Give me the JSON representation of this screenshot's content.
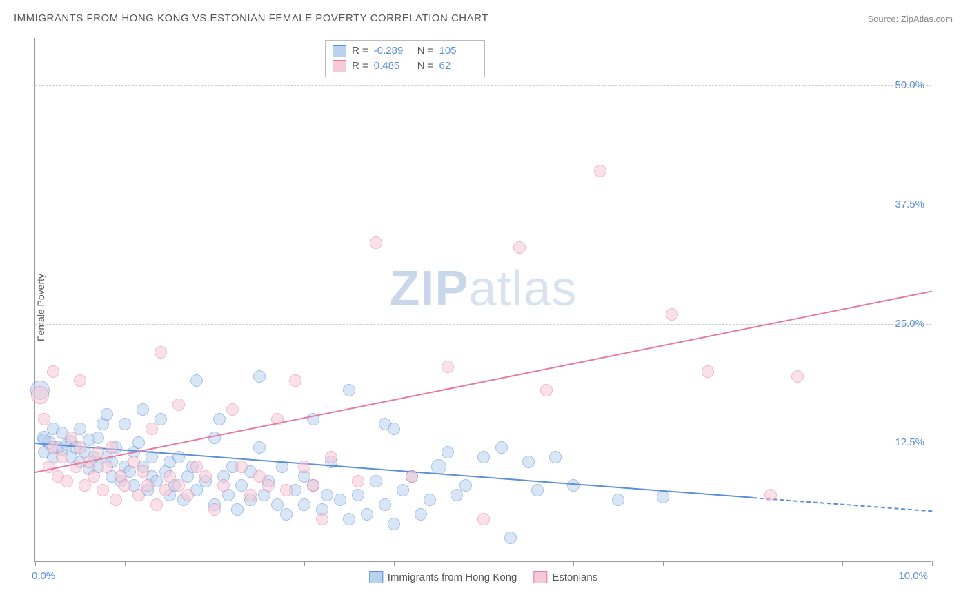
{
  "title": "IMMIGRANTS FROM HONG KONG VS ESTONIAN FEMALE POVERTY CORRELATION CHART",
  "source_label": "Source: ZipAtlas.com",
  "ylabel": "Female Poverty",
  "watermark_1": "ZIP",
  "watermark_2": "atlas",
  "chart": {
    "type": "scatter",
    "xlim": [
      0,
      10
    ],
    "ylim": [
      0,
      55
    ],
    "x_tick_step": 1,
    "x_tick_labels": {
      "0": "0.0%",
      "10": "10.0%"
    },
    "y_ticks": [
      12.5,
      25.0,
      37.5,
      50.0
    ],
    "y_tick_labels": [
      "12.5%",
      "25.0%",
      "37.5%",
      "50.0%"
    ],
    "grid_color": "#cccccc",
    "axis_color": "#999999",
    "background_color": "#ffffff",
    "label_color": "#5b8fd6"
  },
  "series": [
    {
      "name": "Immigrants from Hong Kong",
      "fill": "#b9d2f0",
      "stroke": "#5b8fd6",
      "fill_opacity": 0.55,
      "marker_radius": 9,
      "R": "-0.289",
      "N": "105",
      "trend": {
        "x1": 0,
        "y1": 12.5,
        "x2": 8.0,
        "y2": 6.8,
        "dash_to_x": 10.0,
        "dash_to_y": 5.4
      },
      "points": [
        [
          0.05,
          18.0,
          14
        ],
        [
          0.1,
          13.0,
          10
        ],
        [
          0.15,
          12.5,
          10
        ],
        [
          0.1,
          11.5,
          9
        ],
        [
          0.1,
          12.8,
          9
        ],
        [
          0.2,
          14.0,
          9
        ],
        [
          0.2,
          11.0,
          9
        ],
        [
          0.25,
          12.0,
          9
        ],
        [
          0.3,
          13.5,
          9
        ],
        [
          0.3,
          11.8,
          9
        ],
        [
          0.35,
          12.3,
          9
        ],
        [
          0.4,
          12.7,
          9
        ],
        [
          0.4,
          11.0,
          9
        ],
        [
          0.45,
          12.0,
          9
        ],
        [
          0.5,
          10.5,
          9
        ],
        [
          0.5,
          14.0,
          9
        ],
        [
          0.55,
          11.5,
          9
        ],
        [
          0.6,
          12.8,
          9
        ],
        [
          0.6,
          9.8,
          9
        ],
        [
          0.65,
          11.0,
          9
        ],
        [
          0.7,
          13.0,
          9
        ],
        [
          0.7,
          10.0,
          9
        ],
        [
          0.75,
          14.5,
          9
        ],
        [
          0.8,
          15.5,
          9
        ],
        [
          0.8,
          11.0,
          9
        ],
        [
          0.85,
          9.0,
          9
        ],
        [
          0.85,
          10.5,
          9
        ],
        [
          0.9,
          12.0,
          9
        ],
        [
          0.95,
          8.5,
          9
        ],
        [
          1.0,
          10.0,
          9
        ],
        [
          1.0,
          14.5,
          9
        ],
        [
          1.05,
          9.5,
          9
        ],
        [
          1.1,
          11.5,
          9
        ],
        [
          1.1,
          8.0,
          9
        ],
        [
          1.15,
          12.5,
          9
        ],
        [
          1.2,
          16.0,
          9
        ],
        [
          1.2,
          10.0,
          9
        ],
        [
          1.25,
          7.5,
          9
        ],
        [
          1.3,
          9.0,
          9
        ],
        [
          1.3,
          11.0,
          9
        ],
        [
          1.35,
          8.5,
          9
        ],
        [
          1.4,
          15.0,
          9
        ],
        [
          1.45,
          9.5,
          9
        ],
        [
          1.5,
          10.5,
          9
        ],
        [
          1.5,
          7.0,
          9
        ],
        [
          1.55,
          8.0,
          9
        ],
        [
          1.6,
          11.0,
          9
        ],
        [
          1.65,
          6.5,
          9
        ],
        [
          1.7,
          9.0,
          9
        ],
        [
          1.75,
          10.0,
          9
        ],
        [
          1.8,
          19.0,
          9
        ],
        [
          1.8,
          7.5,
          9
        ],
        [
          1.9,
          8.5,
          9
        ],
        [
          2.0,
          13.0,
          9
        ],
        [
          2.0,
          6.0,
          9
        ],
        [
          2.05,
          15.0,
          9
        ],
        [
          2.1,
          9.0,
          9
        ],
        [
          2.15,
          7.0,
          9
        ],
        [
          2.2,
          10.0,
          9
        ],
        [
          2.25,
          5.5,
          9
        ],
        [
          2.3,
          8.0,
          9
        ],
        [
          2.4,
          6.5,
          9
        ],
        [
          2.4,
          9.5,
          9
        ],
        [
          2.5,
          12.0,
          9
        ],
        [
          2.5,
          19.5,
          9
        ],
        [
          2.55,
          7.0,
          9
        ],
        [
          2.6,
          8.5,
          9
        ],
        [
          2.7,
          6.0,
          9
        ],
        [
          2.75,
          10.0,
          9
        ],
        [
          2.8,
          5.0,
          9
        ],
        [
          2.9,
          7.5,
          9
        ],
        [
          3.0,
          9.0,
          9
        ],
        [
          3.0,
          6.0,
          9
        ],
        [
          3.1,
          15.0,
          9
        ],
        [
          3.1,
          8.0,
          9
        ],
        [
          3.2,
          5.5,
          9
        ],
        [
          3.25,
          7.0,
          9
        ],
        [
          3.3,
          10.5,
          9
        ],
        [
          3.4,
          6.5,
          9
        ],
        [
          3.5,
          4.5,
          9
        ],
        [
          3.5,
          18.0,
          9
        ],
        [
          3.6,
          7.0,
          9
        ],
        [
          3.7,
          5.0,
          9
        ],
        [
          3.8,
          8.5,
          9
        ],
        [
          3.9,
          14.5,
          9
        ],
        [
          3.9,
          6.0,
          9
        ],
        [
          4.0,
          14.0,
          9
        ],
        [
          4.0,
          4.0,
          9
        ],
        [
          4.1,
          7.5,
          9
        ],
        [
          4.2,
          9.0,
          9
        ],
        [
          4.3,
          5.0,
          9
        ],
        [
          4.4,
          6.5,
          9
        ],
        [
          4.5,
          10.0,
          11
        ],
        [
          4.6,
          11.5,
          9
        ],
        [
          4.7,
          7.0,
          9
        ],
        [
          4.8,
          8.0,
          9
        ],
        [
          5.0,
          11.0,
          9
        ],
        [
          5.2,
          12.0,
          9
        ],
        [
          5.3,
          2.5,
          9
        ],
        [
          5.5,
          10.5,
          9
        ],
        [
          5.6,
          7.5,
          9
        ],
        [
          5.8,
          11.0,
          9
        ],
        [
          6.0,
          8.0,
          9
        ],
        [
          6.5,
          6.5,
          9
        ],
        [
          7.0,
          6.8,
          9
        ]
      ]
    },
    {
      "name": "Estonians",
      "fill": "#f6c9d6",
      "stroke": "#e67ba2",
      "fill_opacity": 0.55,
      "marker_radius": 9,
      "R": "0.485",
      "N": "62",
      "trend": {
        "x1": 0,
        "y1": 9.5,
        "x2": 10.0,
        "y2": 28.5
      },
      "points": [
        [
          0.05,
          17.5,
          13
        ],
        [
          0.1,
          15.0,
          9
        ],
        [
          0.15,
          10.0,
          9
        ],
        [
          0.2,
          12.0,
          9
        ],
        [
          0.2,
          20.0,
          9
        ],
        [
          0.25,
          9.0,
          9
        ],
        [
          0.3,
          11.0,
          9
        ],
        [
          0.35,
          8.5,
          9
        ],
        [
          0.4,
          13.0,
          9
        ],
        [
          0.45,
          10.0,
          9
        ],
        [
          0.5,
          12.0,
          9
        ],
        [
          0.5,
          19.0,
          9
        ],
        [
          0.55,
          8.0,
          9
        ],
        [
          0.6,
          10.5,
          9
        ],
        [
          0.65,
          9.0,
          9
        ],
        [
          0.7,
          11.5,
          9
        ],
        [
          0.75,
          7.5,
          9
        ],
        [
          0.8,
          10.0,
          9
        ],
        [
          0.85,
          12.0,
          9
        ],
        [
          0.9,
          6.5,
          9
        ],
        [
          0.95,
          9.0,
          9
        ],
        [
          1.0,
          8.0,
          9
        ],
        [
          1.1,
          10.5,
          9
        ],
        [
          1.15,
          7.0,
          9
        ],
        [
          1.2,
          9.5,
          9
        ],
        [
          1.25,
          8.0,
          9
        ],
        [
          1.3,
          14.0,
          9
        ],
        [
          1.35,
          6.0,
          9
        ],
        [
          1.4,
          22.0,
          9
        ],
        [
          1.45,
          7.5,
          9
        ],
        [
          1.5,
          9.0,
          9
        ],
        [
          1.6,
          8.0,
          9
        ],
        [
          1.6,
          16.5,
          9
        ],
        [
          1.7,
          7.0,
          9
        ],
        [
          1.8,
          10.0,
          9
        ],
        [
          1.9,
          9.0,
          9
        ],
        [
          2.0,
          5.5,
          9
        ],
        [
          2.1,
          8.0,
          9
        ],
        [
          2.2,
          16.0,
          9
        ],
        [
          2.3,
          10.0,
          9
        ],
        [
          2.4,
          7.0,
          9
        ],
        [
          2.5,
          9.0,
          9
        ],
        [
          2.6,
          8.0,
          9
        ],
        [
          2.7,
          15.0,
          9
        ],
        [
          2.8,
          7.5,
          9
        ],
        [
          2.9,
          19.0,
          9
        ],
        [
          3.0,
          10.0,
          9
        ],
        [
          3.1,
          8.0,
          9
        ],
        [
          3.2,
          4.5,
          9
        ],
        [
          3.3,
          11.0,
          9
        ],
        [
          3.6,
          8.5,
          9
        ],
        [
          3.8,
          33.5,
          9
        ],
        [
          4.2,
          9.0,
          9
        ],
        [
          4.6,
          20.5,
          9
        ],
        [
          5.0,
          4.5,
          9
        ],
        [
          5.4,
          33.0,
          9
        ],
        [
          5.7,
          18.0,
          9
        ],
        [
          6.3,
          41.0,
          9
        ],
        [
          7.1,
          26.0,
          9
        ],
        [
          7.5,
          20.0,
          9
        ],
        [
          8.2,
          7.0,
          9
        ],
        [
          8.5,
          19.5,
          9
        ]
      ]
    }
  ],
  "legend_top": {
    "R_label": "R =",
    "N_label": "N ="
  },
  "legend_bottom": [
    {
      "label": "Immigrants from Hong Kong",
      "fill": "#b9d2f0",
      "stroke": "#5b8fd6"
    },
    {
      "label": "Estonians",
      "fill": "#f6c9d6",
      "stroke": "#e67ba2"
    }
  ]
}
